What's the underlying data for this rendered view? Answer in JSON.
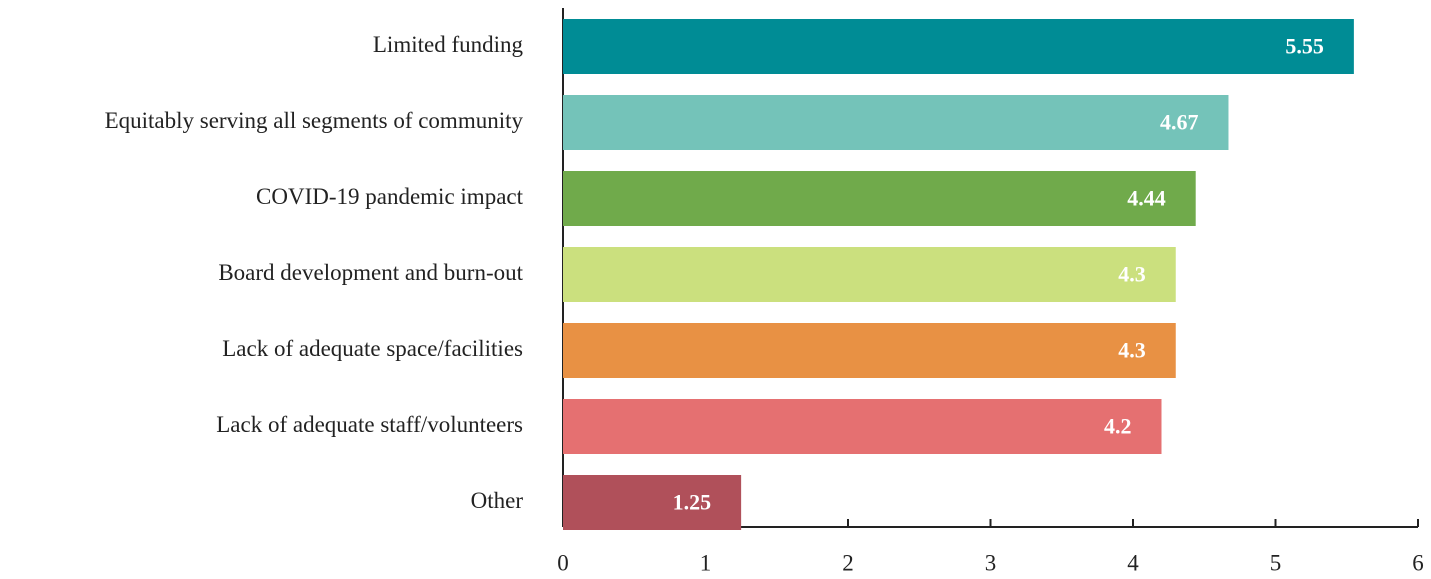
{
  "chart_data": {
    "type": "bar",
    "orientation": "horizontal",
    "categories": [
      "Limited funding",
      "Equitably serving all segments of community",
      "COVID-19 pandemic impact",
      "Board development and burn-out",
      "Lack of adequate space/facilities",
      "Lack of adequate staff/volunteers",
      "Other"
    ],
    "values": [
      5.55,
      4.67,
      4.44,
      4.3,
      4.3,
      4.2,
      1.25
    ],
    "colors": [
      "#008c95",
      "#74c3b9",
      "#70aa4b",
      "#cbe07e",
      "#e89144",
      "#e57071",
      "#b0505a"
    ],
    "xlim": [
      0,
      6
    ],
    "xticks": [
      0,
      1,
      2,
      3,
      4,
      5,
      6
    ],
    "grid": false
  }
}
